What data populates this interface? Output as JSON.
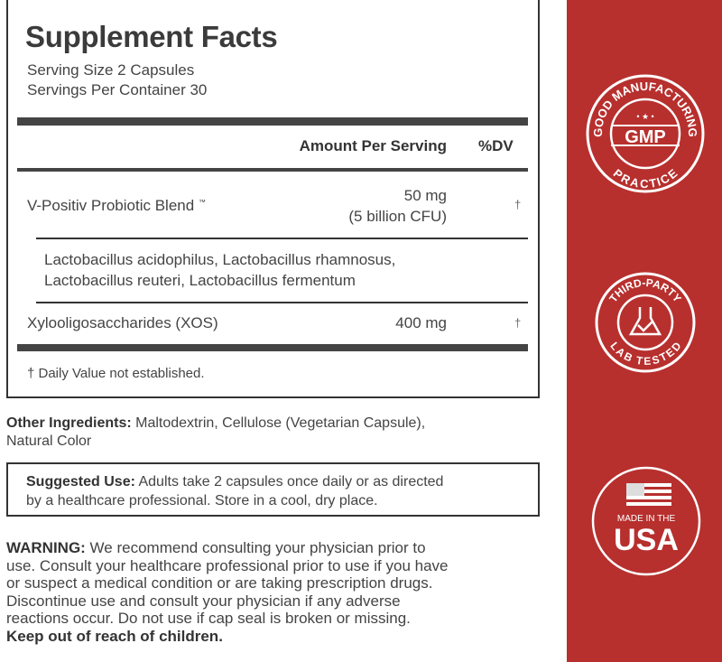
{
  "facts": {
    "title": "Supplement Facts",
    "serving_size": "Serving Size 2 Capsules",
    "servings_per_container": "Servings Per Container 30",
    "header_amount": "Amount Per Serving",
    "header_dv": "%DV",
    "rows": [
      {
        "name": "V-Positiv Probiotic Blend",
        "tm": "™",
        "amount": "50 mg",
        "amount_sub": "(5 billion CFU)",
        "dv": "†"
      },
      {
        "name": "Xylooligosaccharides (XOS)",
        "amount": "400 mg",
        "dv": "†"
      }
    ],
    "blend_contents": [
      "Lactobacillus acidophilus, Lactobacillus rhamnosus,",
      "Lactobacillus reuteri, Lactobacillus fermentum"
    ],
    "footnote": "† Daily Value not established."
  },
  "other_ingredients": {
    "label": "Other Ingredients:",
    "text": " Maltodextrin, Cellulose (Vegetarian Capsule),",
    "text2": "Natural Color"
  },
  "suggested_use": {
    "label": "Suggested Use:",
    "text": " Adults take 2 capsules once daily or as directed",
    "text2": "by a healthcare professional. Store in a cool, dry place."
  },
  "warning": {
    "label": "WARNING:",
    "lines": [
      " We recommend consulting your physician prior to",
      "use. Consult your healthcare professional prior to use if you have",
      "or suspect a medical condition or are taking prescription drugs.",
      "Discontinue use and consult your physician if any adverse",
      "reactions occur. Do not use if cap seal is broken or missing."
    ],
    "final": "Keep out of reach of children."
  },
  "badges": {
    "gmp": {
      "top": "GOOD MANUFACTURING",
      "center": "GMP",
      "bottom": "PRACTICE"
    },
    "lab": {
      "top": "THIRD-PARTY",
      "bottom": "LAB TESTED"
    },
    "usa": {
      "small": "MADE IN THE",
      "big": "USA"
    }
  },
  "colors": {
    "panel": "#b7302e",
    "text": "#3a3a3a"
  }
}
